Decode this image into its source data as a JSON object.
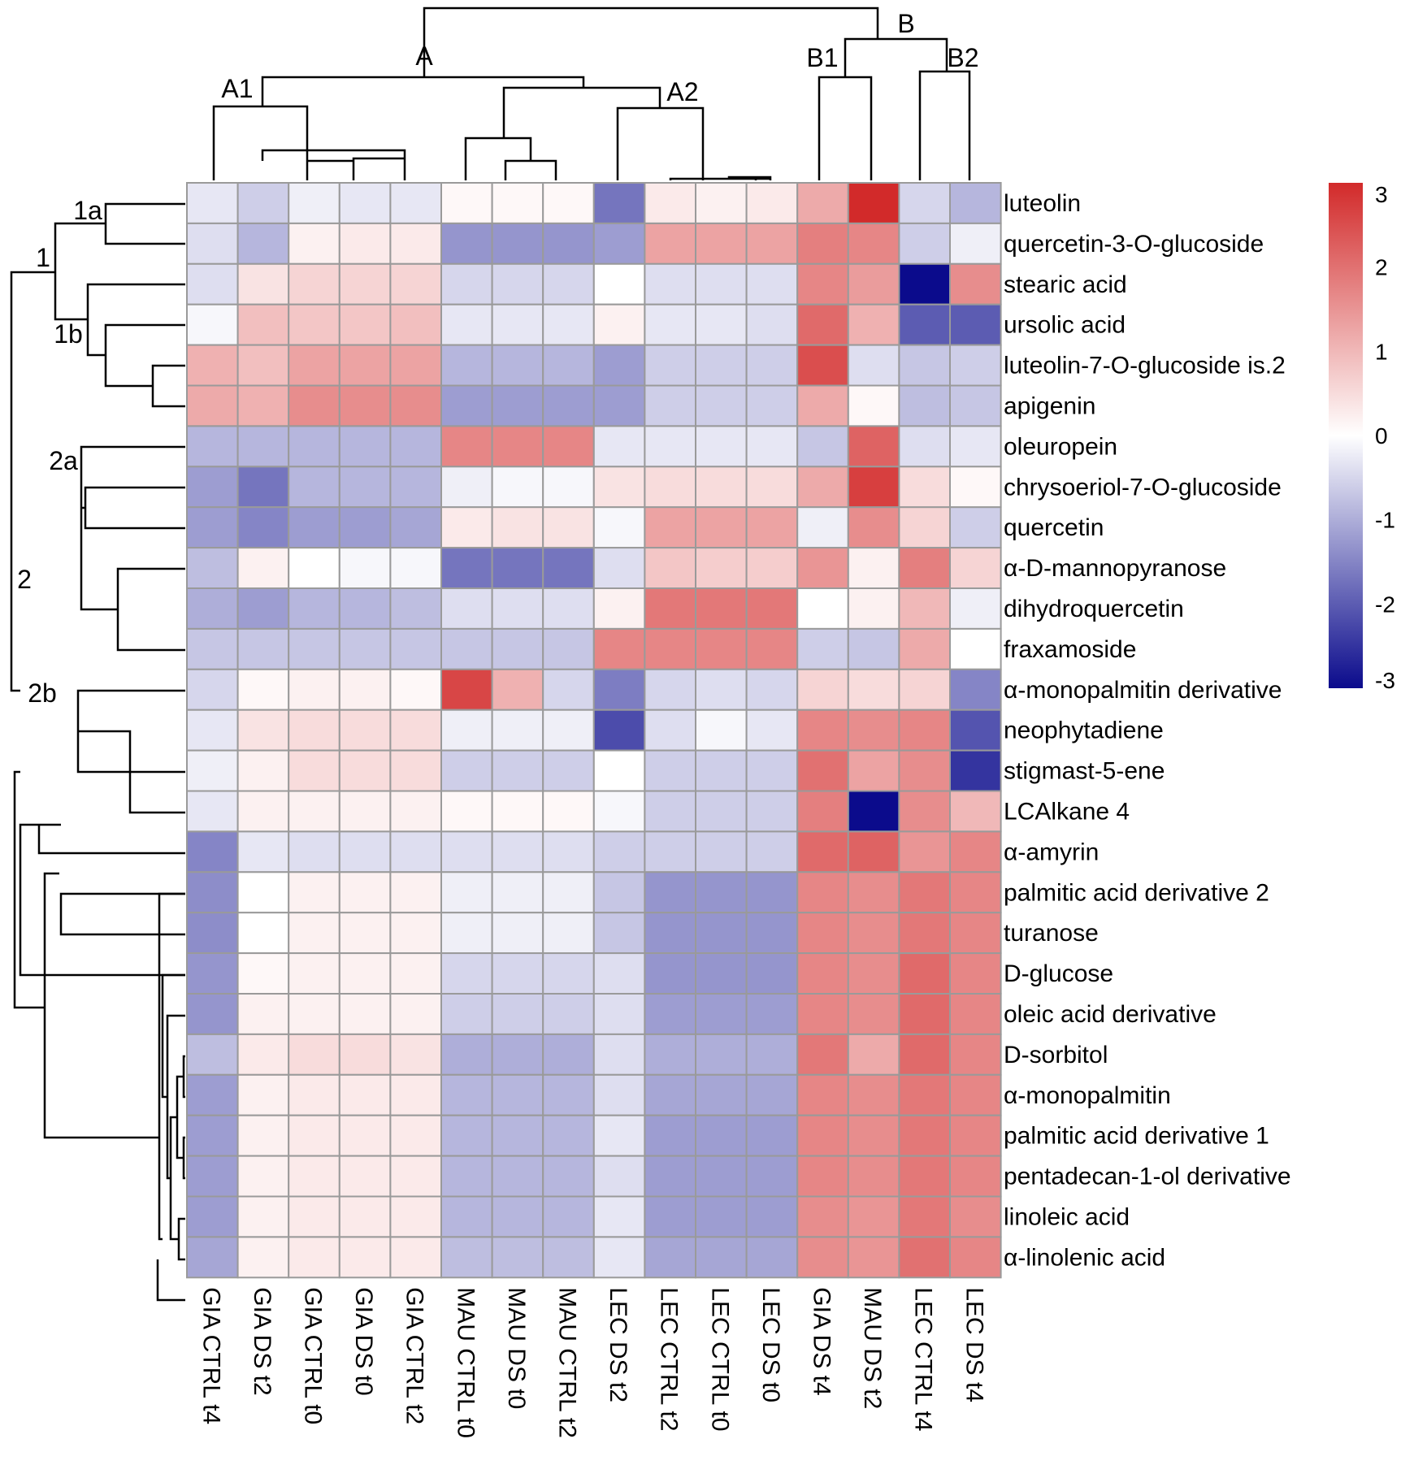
{
  "chart_data": {
    "type": "heatmap",
    "rows": [
      "luteolin",
      "quercetin-3-O-glucoside",
      "stearic acid",
      "ursolic acid",
      "luteolin-7-O-glucoside is.2",
      "apigenin",
      "oleuropein",
      "chrysoeriol-7-O-glucoside",
      "quercetin",
      "α-D-mannopyranose",
      "dihydroquercetin",
      "fraxamoside",
      "α-monopalmitin derivative",
      "neophytadiene",
      "stigmast-5-ene",
      "LCAlkane 4",
      "α-amyrin",
      "palmitic acid derivative 2",
      "turanose",
      "D-glucose",
      "oleic acid derivative",
      "D-sorbitol",
      "α-monopalmitin",
      "palmitic acid derivative 1",
      "pentadecan-1-ol derivative",
      "linoleic acid",
      "α-linolenic acid"
    ],
    "columns": [
      "GIA CTRL t4",
      "GIA DS t2",
      "GIA CTRL t0",
      "GIA DS t0",
      "GIA CTRL t2",
      "MAU CTRL t0",
      "MAU DS t0",
      "MAU CTRL t2",
      "LEC DS t2",
      "LEC CTRL t2",
      "LEC CTRL t0",
      "LEC DS t0",
      "GIA DS t4",
      "MAU DS t2",
      "LEC CTRL t4",
      "LEC DS t4"
    ],
    "values": [
      [
        -0.3,
        -0.6,
        -0.2,
        -0.3,
        -0.3,
        0.1,
        0.1,
        0.1,
        -1.7,
        0.3,
        0.2,
        0.3,
        1.2,
        3.0,
        -0.5,
        -0.9
      ],
      [
        -0.4,
        -0.9,
        0.2,
        0.3,
        0.3,
        -1.3,
        -1.3,
        -1.3,
        -1.2,
        1.3,
        1.3,
        1.3,
        1.8,
        1.7,
        -0.6,
        -0.2
      ],
      [
        -0.4,
        0.4,
        0.6,
        0.6,
        0.6,
        -0.5,
        -0.5,
        -0.5,
        0.0,
        -0.4,
        -0.4,
        -0.4,
        1.7,
        1.4,
        -3.0,
        1.6
      ],
      [
        -0.1,
        0.9,
        0.8,
        0.8,
        0.9,
        -0.3,
        -0.3,
        -0.3,
        0.2,
        -0.3,
        -0.3,
        -0.4,
        2.1,
        1.1,
        -2.0,
        -2.0
      ],
      [
        1.1,
        0.9,
        1.3,
        1.3,
        1.3,
        -0.9,
        -0.9,
        -0.9,
        -1.2,
        -0.6,
        -0.6,
        -0.6,
        2.5,
        -0.4,
        -0.7,
        -0.6
      ],
      [
        1.2,
        1.1,
        1.6,
        1.6,
        1.6,
        -1.2,
        -1.2,
        -1.2,
        -1.2,
        -0.6,
        -0.6,
        -0.6,
        1.2,
        0.1,
        -0.8,
        -0.7
      ],
      [
        -0.9,
        -0.9,
        -0.9,
        -0.9,
        -0.9,
        1.7,
        1.7,
        1.7,
        -0.3,
        -0.3,
        -0.3,
        -0.3,
        -0.7,
        2.2,
        -0.4,
        -0.3
      ],
      [
        -1.2,
        -1.7,
        -0.9,
        -0.9,
        -0.9,
        -0.2,
        -0.1,
        -0.1,
        0.4,
        0.5,
        0.5,
        0.5,
        1.2,
        2.7,
        0.5,
        0.1
      ],
      [
        -1.2,
        -1.5,
        -1.2,
        -1.2,
        -1.1,
        0.3,
        0.4,
        0.4,
        -0.1,
        1.3,
        1.3,
        1.3,
        -0.2,
        1.6,
        0.6,
        -0.6
      ],
      [
        -0.8,
        0.2,
        0.0,
        -0.1,
        -0.1,
        -1.7,
        -1.7,
        -1.7,
        -0.4,
        0.8,
        0.7,
        0.7,
        1.5,
        0.2,
        1.8,
        0.6
      ],
      [
        -1.0,
        -1.2,
        -0.9,
        -0.9,
        -0.8,
        -0.4,
        -0.4,
        -0.4,
        0.2,
        1.9,
        1.9,
        1.9,
        0.0,
        0.2,
        1.0,
        -0.2
      ],
      [
        -0.7,
        -0.7,
        -0.7,
        -0.7,
        -0.7,
        -0.7,
        -0.7,
        -0.7,
        1.7,
        1.7,
        1.7,
        1.7,
        -0.6,
        -0.7,
        1.2,
        0.0
      ],
      [
        -0.5,
        0.1,
        0.2,
        0.2,
        0.1,
        2.6,
        1.1,
        -0.5,
        -1.6,
        -0.5,
        -0.4,
        -0.5,
        0.6,
        0.5,
        0.6,
        -1.5
      ],
      [
        -0.3,
        0.4,
        0.5,
        0.5,
        0.5,
        -0.2,
        -0.2,
        -0.2,
        -2.2,
        -0.4,
        -0.1,
        -0.3,
        1.7,
        1.6,
        1.7,
        -2.1
      ],
      [
        -0.2,
        0.2,
        0.5,
        0.5,
        0.5,
        -0.6,
        -0.6,
        -0.6,
        0.0,
        -0.6,
        -0.6,
        -0.6,
        2.0,
        1.3,
        1.6,
        -2.5
      ],
      [
        -0.3,
        0.2,
        0.2,
        0.2,
        0.2,
        0.1,
        0.1,
        0.1,
        -0.1,
        -0.6,
        -0.6,
        -0.6,
        1.8,
        -3.0,
        1.6,
        1.0
      ],
      [
        -1.5,
        -0.3,
        -0.4,
        -0.4,
        -0.4,
        -0.4,
        -0.4,
        -0.4,
        -0.6,
        -0.6,
        -0.6,
        -0.6,
        2.1,
        2.2,
        1.5,
        1.7
      ],
      [
        -1.4,
        0.0,
        0.2,
        0.2,
        0.2,
        -0.2,
        -0.2,
        -0.2,
        -0.7,
        -1.3,
        -1.3,
        -1.3,
        1.7,
        1.6,
        1.9,
        1.7
      ],
      [
        -1.4,
        0.0,
        0.2,
        0.2,
        0.2,
        -0.2,
        -0.2,
        -0.2,
        -0.7,
        -1.3,
        -1.3,
        -1.3,
        1.7,
        1.6,
        1.9,
        1.7
      ],
      [
        -1.3,
        0.1,
        0.2,
        0.2,
        0.2,
        -0.5,
        -0.5,
        -0.5,
        -0.4,
        -1.3,
        -1.3,
        -1.3,
        1.7,
        1.6,
        2.1,
        1.7
      ],
      [
        -1.3,
        0.2,
        0.2,
        0.2,
        0.2,
        -0.6,
        -0.6,
        -0.6,
        -0.4,
        -1.2,
        -1.2,
        -1.2,
        1.7,
        1.6,
        2.1,
        1.7
      ],
      [
        -0.8,
        0.3,
        0.5,
        0.5,
        0.4,
        -1.0,
        -1.0,
        -1.0,
        -0.4,
        -1.0,
        -1.0,
        -1.0,
        1.9,
        1.2,
        2.1,
        1.7
      ],
      [
        -1.2,
        0.2,
        0.3,
        0.3,
        0.3,
        -0.9,
        -0.9,
        -0.9,
        -0.4,
        -1.1,
        -1.1,
        -1.1,
        1.7,
        1.6,
        1.9,
        1.7
      ],
      [
        -1.2,
        0.2,
        0.3,
        0.3,
        0.3,
        -0.9,
        -0.9,
        -0.9,
        -0.3,
        -1.2,
        -1.2,
        -1.2,
        1.7,
        1.6,
        1.9,
        1.7
      ],
      [
        -1.2,
        0.2,
        0.3,
        0.3,
        0.3,
        -0.9,
        -0.9,
        -0.9,
        -0.4,
        -1.2,
        -1.2,
        -1.2,
        1.7,
        1.6,
        1.9,
        1.7
      ],
      [
        -1.2,
        0.2,
        0.3,
        0.3,
        0.3,
        -0.9,
        -0.9,
        -0.9,
        -0.3,
        -1.2,
        -1.2,
        -1.2,
        1.6,
        1.5,
        1.9,
        1.6
      ],
      [
        -1.1,
        0.2,
        0.3,
        0.3,
        0.3,
        -0.8,
        -0.8,
        -0.8,
        -0.3,
        -1.1,
        -1.1,
        -1.1,
        1.6,
        1.5,
        2.0,
        1.7
      ]
    ],
    "colorbar": {
      "min": -3,
      "max": 3,
      "ticks": [
        3,
        2,
        1,
        0,
        -1,
        -2,
        -3
      ],
      "low_color": "#0b0b8c",
      "mid_color": "#ffffff",
      "high_color": "#d22a2a"
    },
    "column_cluster_labels": [
      "A",
      "A1",
      "A2",
      "B",
      "B1",
      "B2"
    ],
    "row_cluster_labels": [
      "1",
      "1a",
      "1b",
      "2",
      "2a",
      "2b"
    ]
  }
}
